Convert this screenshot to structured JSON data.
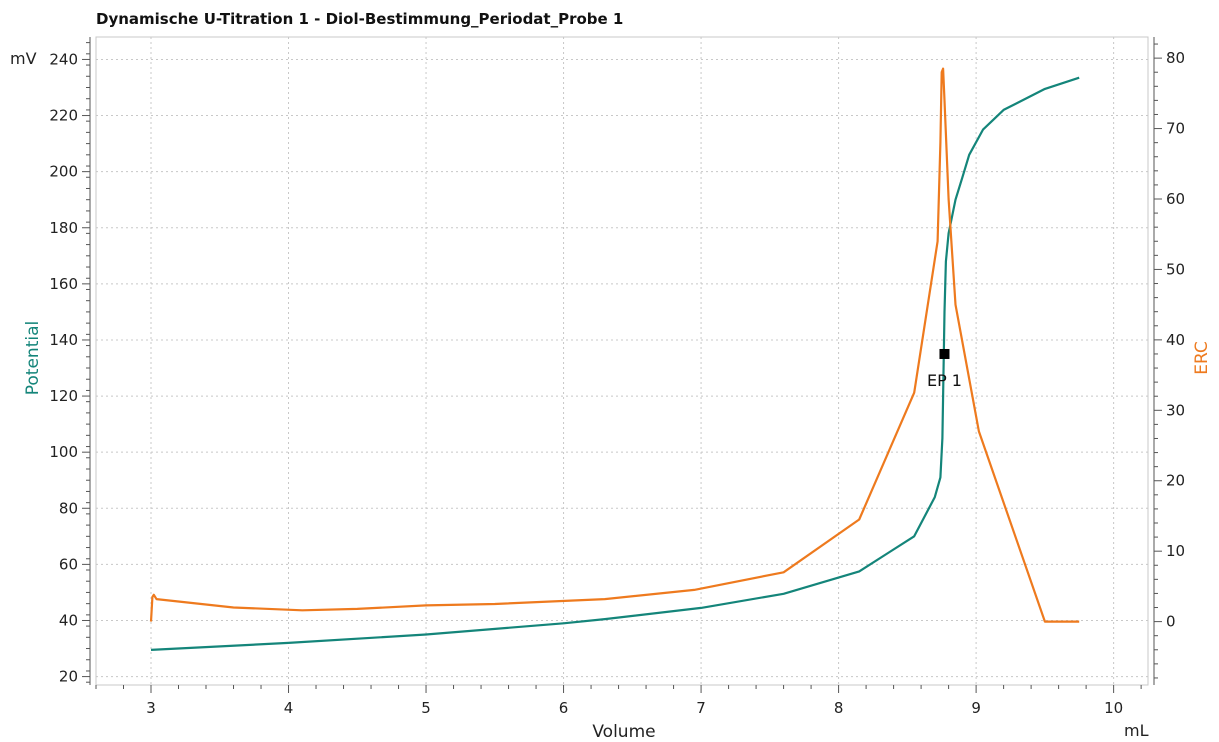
{
  "chart_data": {
    "type": "line",
    "title": "Dynamische U-Titration 1 - Diol-Bestimmung_Periodat_Probe  1",
    "xlabel": "Volume",
    "x_unit": "mL",
    "xlim": [
      2.6,
      10.25
    ],
    "x_ticks": [
      3,
      4,
      5,
      6,
      7,
      8,
      9,
      10
    ],
    "y_left": {
      "label": "Potential",
      "unit": "mV",
      "lim": [
        17,
        248
      ],
      "ticks": [
        20,
        40,
        60,
        80,
        100,
        120,
        140,
        160,
        180,
        200,
        220,
        240
      ],
      "color": "#14857a"
    },
    "y_right": {
      "label": "ERC",
      "lim": [
        -9,
        83
      ],
      "ticks": [
        0,
        10,
        20,
        30,
        40,
        50,
        60,
        70,
        80
      ],
      "color": "#ee7a1e"
    },
    "grid": true,
    "series": [
      {
        "name": "Potential",
        "axis": "left",
        "color": "#14857a",
        "points": [
          [
            3.0,
            29.5
          ],
          [
            4.0,
            32
          ],
          [
            5.0,
            35
          ],
          [
            6.0,
            39
          ],
          [
            6.3,
            40.5
          ],
          [
            7.0,
            44.5
          ],
          [
            7.6,
            49.5
          ],
          [
            8.15,
            57.5
          ],
          [
            8.55,
            70
          ],
          [
            8.7,
            84
          ],
          [
            8.74,
            91
          ],
          [
            8.755,
            105
          ],
          [
            8.76,
            120
          ],
          [
            8.765,
            135
          ],
          [
            8.77,
            150
          ],
          [
            8.78,
            168
          ],
          [
            8.8,
            178
          ],
          [
            8.85,
            190
          ],
          [
            8.9,
            198
          ],
          [
            8.95,
            206
          ],
          [
            9.05,
            215
          ],
          [
            9.2,
            222
          ],
          [
            9.5,
            229.5
          ],
          [
            9.75,
            233.5
          ]
        ]
      },
      {
        "name": "ERC",
        "axis": "right",
        "color": "#ee7a1e",
        "points": [
          [
            3.0,
            0
          ],
          [
            3.01,
            3.5
          ],
          [
            3.02,
            3.8
          ],
          [
            3.04,
            3.2
          ],
          [
            3.6,
            2.0
          ],
          [
            4.1,
            1.6
          ],
          [
            4.5,
            1.8
          ],
          [
            5.0,
            2.3
          ],
          [
            5.5,
            2.5
          ],
          [
            6.3,
            3.2
          ],
          [
            6.95,
            4.5
          ],
          [
            7.6,
            7.0
          ],
          [
            8.15,
            14.5
          ],
          [
            8.55,
            32.5
          ],
          [
            8.72,
            54
          ],
          [
            8.74,
            68
          ],
          [
            8.75,
            78
          ],
          [
            8.76,
            78.5
          ],
          [
            8.77,
            74
          ],
          [
            8.8,
            60
          ],
          [
            8.85,
            45
          ],
          [
            9.02,
            27
          ],
          [
            9.5,
            0
          ],
          [
            9.75,
            0
          ]
        ]
      }
    ],
    "endpoints": [
      {
        "label": "EP 1",
        "x": 8.77,
        "y": 135
      }
    ]
  }
}
